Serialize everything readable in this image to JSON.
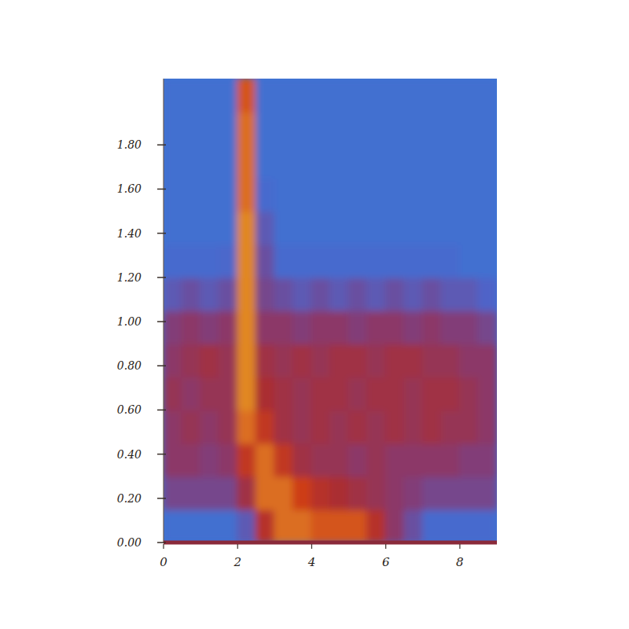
{
  "chart_data": {
    "type": "heatmap",
    "xlim": [
      0,
      9
    ],
    "ylim": [
      0,
      2.1
    ],
    "xticks": [
      0,
      2,
      4,
      6,
      8
    ],
    "yticks": [
      {
        "value": 0,
        "label": "0.00"
      },
      {
        "value": 0.2,
        "label": "0.20"
      },
      {
        "value": 0.4,
        "label": "0.40"
      },
      {
        "value": 0.6,
        "label": "0.60"
      },
      {
        "value": 0.8,
        "label": "0.80"
      },
      {
        "value": 1.0,
        "label": "1.00"
      },
      {
        "value": 1.2,
        "label": "1.20"
      },
      {
        "value": 1.4,
        "label": "1.40"
      },
      {
        "value": 1.6,
        "label": "1.60"
      },
      {
        "value": 1.8,
        "label": "1.80"
      }
    ],
    "clim": [
      0,
      1
    ],
    "x_edges": [
      0,
      0.5,
      1,
      1.5,
      2,
      2.5,
      3,
      3.5,
      4,
      4.5,
      5,
      5.5,
      6,
      6.5,
      7,
      7.5,
      8,
      8.5,
      9
    ],
    "y_edges": [
      0,
      0.15,
      0.3,
      0.45,
      0.6,
      0.75,
      0.9,
      1.05,
      1.2,
      1.35,
      1.5,
      1.65,
      1.8,
      1.95,
      2.1
    ],
    "cells": [
      [
        0.1,
        0.1,
        0.1,
        0.1,
        0.3,
        0.7,
        0.9,
        0.9,
        0.85,
        0.85,
        0.85,
        0.7,
        0.5,
        0.35,
        0.15,
        0.15,
        0.15,
        0.15
      ],
      [
        0.4,
        0.4,
        0.4,
        0.4,
        0.6,
        0.9,
        0.9,
        0.8,
        0.7,
        0.65,
        0.6,
        0.55,
        0.5,
        0.45,
        0.4,
        0.4,
        0.4,
        0.4
      ],
      [
        0.5,
        0.5,
        0.45,
        0.5,
        0.75,
        0.9,
        0.75,
        0.6,
        0.55,
        0.55,
        0.5,
        0.55,
        0.5,
        0.5,
        0.5,
        0.5,
        0.45,
        0.45
      ],
      [
        0.5,
        0.55,
        0.5,
        0.55,
        0.9,
        0.75,
        0.6,
        0.55,
        0.6,
        0.55,
        0.6,
        0.55,
        0.6,
        0.55,
        0.6,
        0.55,
        0.55,
        0.5
      ],
      [
        0.55,
        0.5,
        0.55,
        0.55,
        0.95,
        0.65,
        0.6,
        0.55,
        0.6,
        0.6,
        0.55,
        0.6,
        0.6,
        0.55,
        0.6,
        0.6,
        0.55,
        0.5
      ],
      [
        0.5,
        0.55,
        0.6,
        0.55,
        0.95,
        0.6,
        0.55,
        0.6,
        0.55,
        0.6,
        0.6,
        0.55,
        0.6,
        0.6,
        0.55,
        0.55,
        0.5,
        0.5
      ],
      [
        0.45,
        0.5,
        0.45,
        0.5,
        0.95,
        0.5,
        0.5,
        0.45,
        0.5,
        0.5,
        0.45,
        0.5,
        0.5,
        0.45,
        0.5,
        0.45,
        0.45,
        0.4
      ],
      [
        0.3,
        0.35,
        0.3,
        0.35,
        0.95,
        0.4,
        0.35,
        0.3,
        0.35,
        0.3,
        0.35,
        0.3,
        0.35,
        0.3,
        0.35,
        0.3,
        0.3,
        0.25
      ],
      [
        0.15,
        0.15,
        0.15,
        0.2,
        0.95,
        0.35,
        0.15,
        0.15,
        0.15,
        0.15,
        0.15,
        0.15,
        0.15,
        0.15,
        0.15,
        0.15,
        0.1,
        0.1
      ],
      [
        0.1,
        0.1,
        0.1,
        0.1,
        0.95,
        0.3,
        0.1,
        0.1,
        0.1,
        0.1,
        0.1,
        0.1,
        0.1,
        0.1,
        0.1,
        0.1,
        0.1,
        0.1
      ],
      [
        0.1,
        0.1,
        0.1,
        0.1,
        0.9,
        0.15,
        0.1,
        0.1,
        0.1,
        0.1,
        0.1,
        0.1,
        0.1,
        0.1,
        0.1,
        0.1,
        0.1,
        0.1
      ],
      [
        0.1,
        0.1,
        0.1,
        0.1,
        0.9,
        0.1,
        0.1,
        0.1,
        0.1,
        0.1,
        0.1,
        0.1,
        0.1,
        0.1,
        0.1,
        0.1,
        0.1,
        0.1
      ],
      [
        0.1,
        0.1,
        0.1,
        0.1,
        0.9,
        0.1,
        0.1,
        0.1,
        0.1,
        0.1,
        0.1,
        0.1,
        0.1,
        0.1,
        0.1,
        0.1,
        0.1,
        0.1
      ],
      [
        0.1,
        0.1,
        0.1,
        0.1,
        0.85,
        0.1,
        0.1,
        0.1,
        0.1,
        0.1,
        0.1,
        0.1,
        0.1,
        0.1,
        0.1,
        0.1,
        0.1,
        0.1
      ]
    ]
  }
}
